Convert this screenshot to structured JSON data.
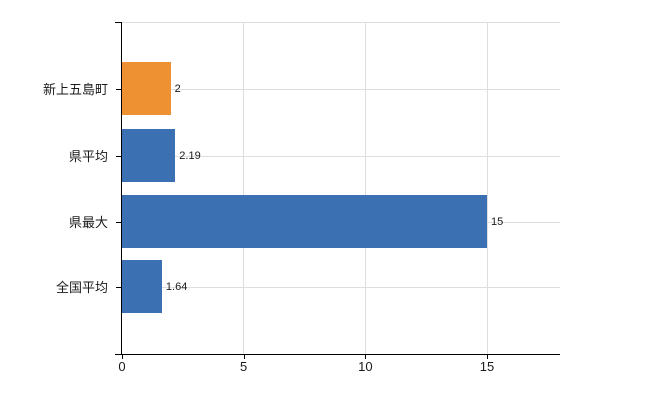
{
  "chart_data": {
    "type": "bar",
    "orientation": "horizontal",
    "title": "",
    "xlabel": "",
    "ylabel": "",
    "categories": [
      "新上五島町",
      "県平均",
      "県最大",
      "全国平均"
    ],
    "values": [
      2,
      2.19,
      15,
      1.64
    ],
    "value_labels": [
      "2",
      "2.19",
      "15",
      "1.64"
    ],
    "bar_colors": [
      "#EE9133",
      "#3B70B2",
      "#3B70B2",
      "#3B70B2"
    ],
    "xlim": [
      0,
      18
    ],
    "x_tick_values": [
      0,
      5,
      10,
      15
    ],
    "x_tick_labels": [
      "0",
      "5",
      "10",
      "15"
    ],
    "grid": "on",
    "legend": "none",
    "colors": {
      "grid": "#DEDEDE",
      "axis": "#000000",
      "text": "#1A1A1A",
      "background": "#FFFFFF"
    }
  }
}
